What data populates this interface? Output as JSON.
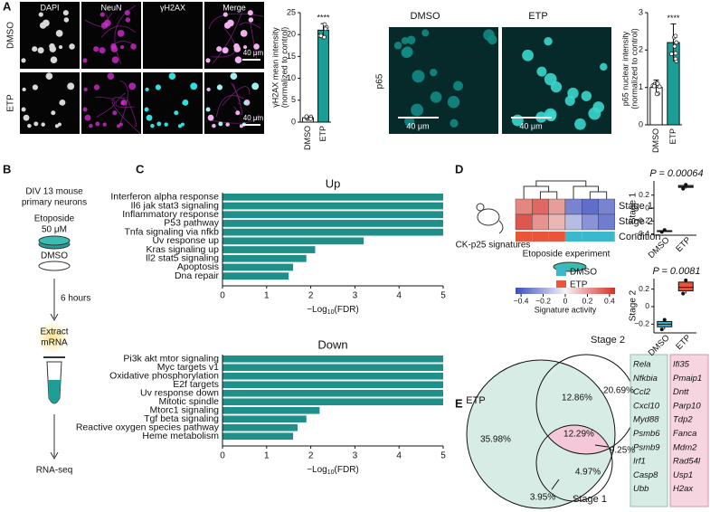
{
  "panel_labels": [
    "A",
    "B",
    "C",
    "D",
    "E"
  ],
  "panel_a": {
    "channels": [
      "DAPI",
      "NeuN",
      "γH2AX",
      "Merge"
    ],
    "conditions": [
      "DMSO",
      "ETP"
    ],
    "scale_bar": "40 μm",
    "gh2ax_chart": {
      "type": "bar",
      "ylabel": [
        "γH2AX mean intensity",
        "(normalized to control)"
      ],
      "categories": [
        "DMSO",
        "ETP"
      ],
      "values": [
        1,
        21
      ],
      "errors": [
        0.3,
        1.5
      ],
      "colors": [
        "#ffffff",
        "#1a9e96"
      ],
      "ylim": [
        0,
        25
      ],
      "yticks": [
        0,
        5,
        10,
        15,
        20,
        25
      ],
      "significance": "****"
    },
    "p65_images": {
      "marker": "p65",
      "conditions": [
        "DMSO",
        "ETP"
      ],
      "scale_bar": "40  μm"
    },
    "p65_chart": {
      "type": "bar",
      "ylabel": [
        "p65 nuclear intensity",
        "(normalized to control)"
      ],
      "categories": [
        "DMSO",
        "ETP"
      ],
      "values": [
        1.0,
        2.2
      ],
      "errors": [
        0.2,
        0.5
      ],
      "colors": [
        "#ffffff",
        "#1a9e96"
      ],
      "ylim": [
        0,
        3
      ],
      "yticks": [
        0,
        1,
        2,
        3
      ],
      "significance": "****"
    }
  },
  "panel_b": {
    "culture": [
      "DIV 13 mouse",
      "primary neurons"
    ],
    "treatment": [
      "Etoposide",
      "50 μM"
    ],
    "control": "DMSO",
    "duration": "6 hours",
    "extract": [
      "Extract",
      "mRNA"
    ],
    "assay": "RNA-seq"
  },
  "panel_c": {
    "type": "hbar",
    "color": "#1f8f8a",
    "xlim": [
      0,
      5
    ],
    "xticks": [
      0,
      1,
      2,
      3,
      4,
      5
    ],
    "xlabel": {
      "prefix": "−Log",
      "sub": "10",
      "suffix": "(FDR)"
    },
    "up": {
      "title": "Up",
      "categories": [
        "Interferon alpha response",
        "Il6 jak stat3 signaling",
        "Inflammatory response",
        "P53 pathway",
        "Tnfa signaling via nfkb",
        "Uv response up",
        "Kras signaling up",
        "Il2 stat5 signaling",
        "Apoptosis",
        "Dna repair"
      ],
      "values": [
        5,
        5,
        5,
        5,
        5,
        3.2,
        2.1,
        1.9,
        1.6,
        1.5
      ]
    },
    "down": {
      "title": "Down",
      "categories": [
        "Pi3k akt mtor signaling",
        "Myc targets v1",
        "Oxidative phosphorylation",
        "E2f targets",
        "Uv response down",
        "Mitotic spindle",
        "Mtorc1 signaling",
        "Tgf beta signaling",
        "Reactive oxygen species pathway",
        "Heme metabolism"
      ],
      "values": [
        5,
        5,
        5,
        5,
        5,
        5,
        2.2,
        1.9,
        1.7,
        1.6
      ]
    }
  },
  "panel_d": {
    "signature_label": "CK-p25 signatures",
    "experiment_label": "Etoposide experiment",
    "row_labels": [
      "Stage 1",
      "Stage 2",
      "Condition"
    ],
    "heatmap": [
      [
        0.25,
        0.32,
        0.2,
        -0.3,
        -0.36,
        -0.3
      ],
      [
        0.36,
        0.22,
        0.14,
        -0.15,
        -0.26,
        -0.32
      ]
    ],
    "condition": [
      "ETP",
      "ETP",
      "ETP",
      "DMSO",
      "DMSO",
      "DMSO"
    ],
    "legend": [
      {
        "name": "DMSO",
        "color": "#3bb8cc"
      },
      {
        "name": "ETP",
        "color": "#e8553b"
      }
    ],
    "colorbar": {
      "label": "Signature activity",
      "lim": [
        -0.45,
        0.45
      ],
      "ticks": [
        {
          "value": -0.4,
          "label": "−0.4"
        },
        {
          "value": -0.2,
          "label": "−0.2"
        },
        0,
        0.2,
        0.4
      ]
    },
    "boxplots": [
      {
        "type": "box",
        "ylabel": "Stage 1",
        "p_label": "P = 0.00064",
        "categories": [
          "DMSO",
          "ETP"
        ],
        "min": [
          -0.37,
          0.3
        ],
        "q1": [
          -0.36,
          0.32
        ],
        "median": [
          -0.355,
          0.33
        ],
        "q3": [
          -0.35,
          0.35
        ],
        "max": [
          -0.34,
          0.36
        ],
        "ylim": [
          -0.42,
          0.42
        ],
        "yticks": [
          {
            "value": -0.4,
            "label": "−0.4"
          },
          {
            "value": -0.2,
            "label": "−0.2"
          },
          0,
          0.2
        ]
      },
      {
        "type": "box",
        "ylabel": "Stage 2",
        "p_label": "P = 0.0081",
        "categories": [
          "DMSO",
          "ETP"
        ],
        "min": [
          -0.26,
          0.15
        ],
        "q1": [
          -0.23,
          0.18
        ],
        "median": [
          -0.2,
          0.22
        ],
        "q3": [
          -0.17,
          0.28
        ],
        "max": [
          -0.15,
          0.3
        ],
        "ylim": [
          -0.3,
          0.32
        ],
        "yticks": [
          {
            "value": -0.2,
            "label": "−0.2"
          },
          0,
          0.2
        ]
      }
    ]
  },
  "panel_e": {
    "sets": [
      "ETP",
      "Stage 2",
      "Stage 1"
    ],
    "regions": {
      "etp_only": "35.98%",
      "etp_stage2": "12.86%",
      "stage2_only": "20.69%",
      "all_three": "12.29%",
      "stage2_stage1": "9.25%",
      "stage1_only": "4.97%",
      "etp_stage1": "3.95%"
    },
    "genes_etp_stage2": [
      "Rela",
      "Nfkbia",
      "Ccl2",
      "Cxcl10",
      "Myd88",
      "Psmb6",
      "Psmb9",
      "Irf1",
      "Casp8",
      "Ubb"
    ],
    "genes_all_three": [
      "Ifi35",
      "Pmaip1",
      "Dntt",
      "Parp10",
      "Tdp2",
      "Fanca",
      "Mdm2",
      "Rad54l",
      "Usp1",
      "H2ax"
    ]
  }
}
